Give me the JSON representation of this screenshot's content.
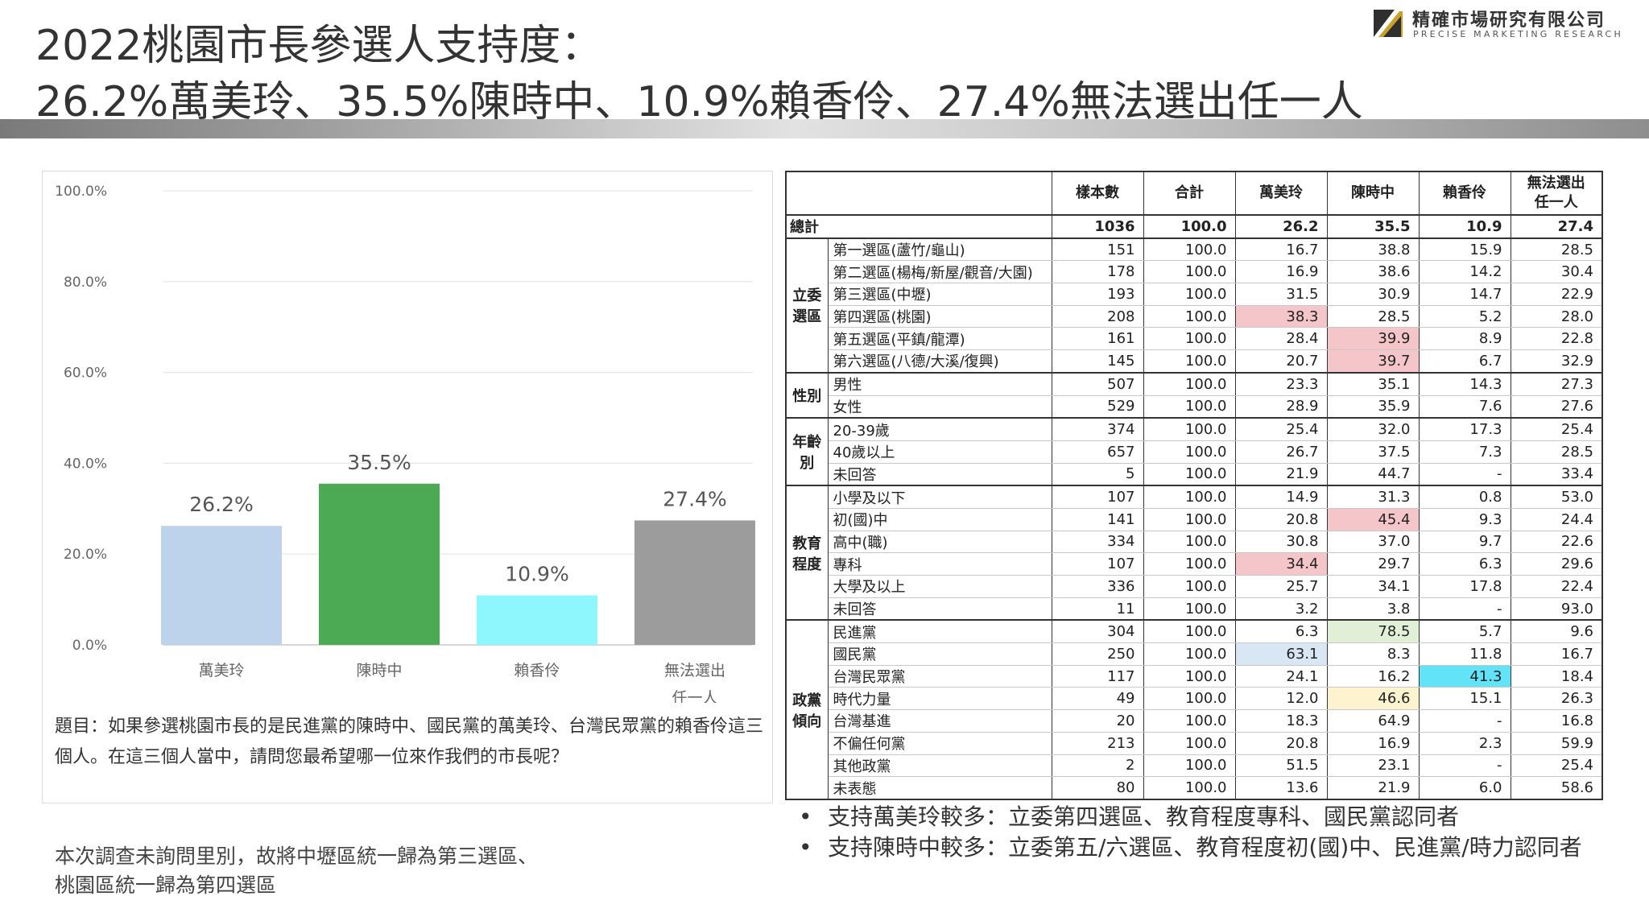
{
  "company": {
    "name_zh": "精確市場研究有限公司",
    "name_en": "PRECISE MARKETING RESEARCH",
    "logo_icon": "logo-mark-icon",
    "logo_colors": [
      "#2f2f2f",
      "#c9a227"
    ]
  },
  "title": {
    "line1": "2022桃園市長參選人支持度：",
    "line2": "26.2%萬美玲、35.5%陳時中、10.9%賴香伶、27.4%無法選出任一人"
  },
  "chart_data": {
    "type": "bar",
    "categories": [
      "萬美玲",
      "陳時中",
      "賴香伶",
      "無法選出任一人"
    ],
    "category_lines": [
      [
        "萬美玲"
      ],
      [
        "陳時中"
      ],
      [
        "賴香伶"
      ],
      [
        "無法選出",
        "任一人"
      ]
    ],
    "values": [
      26.2,
      35.5,
      10.9,
      27.4
    ],
    "data_labels": [
      "26.2%",
      "35.5%",
      "10.9%",
      "27.4%"
    ],
    "colors": [
      "#bdd3ec",
      "#4caa55",
      "#8ef6fd",
      "#9c9c9c"
    ],
    "ylim": [
      0,
      100
    ],
    "yticks": [
      0,
      20,
      40,
      60,
      80,
      100
    ],
    "ytick_labels": [
      "0.0%",
      "20.0%",
      "40.0%",
      "60.0%",
      "80.0%",
      "100.0%"
    ],
    "grid": true,
    "legend": "none"
  },
  "question": "題目：如果參選桃園市長的是民進黨的陳時中、國民黨的萬美玲、台灣民眾黨的賴香伶這三個人。在這三個人當中，請問您最希望哪一位來作我們的市長呢？",
  "note": {
    "line1": "本次調查未詢問里別，故將中壢區統一歸為第三選區、",
    "line2": "桃園區統一歸為第四選區"
  },
  "table": {
    "columns": [
      "樣本數",
      "合計",
      "萬美玲",
      "陳時中",
      "賴香伶",
      "無法選出任一人"
    ],
    "column_lines": [
      [
        "樣本數"
      ],
      [
        "合計"
      ],
      [
        "萬美玲"
      ],
      [
        "陳時中"
      ],
      [
        "賴香伶"
      ],
      [
        "無法選出",
        "任一人"
      ]
    ],
    "total": {
      "label": "總計",
      "values": [
        "1036",
        "100.0",
        "26.2",
        "35.5",
        "10.9",
        "27.4"
      ]
    },
    "groups": [
      {
        "label_lines": [
          "立委",
          "選區"
        ],
        "rows": [
          {
            "label": "第一選區(蘆竹/龜山)",
            "values": [
              "151",
              "100.0",
              "16.7",
              "38.8",
              "15.9",
              "28.5"
            ]
          },
          {
            "label": "第二選區(楊梅/新屋/觀音/大園)",
            "values": [
              "178",
              "100.0",
              "16.9",
              "38.6",
              "14.2",
              "30.4"
            ]
          },
          {
            "label": "第三選區(中壢)",
            "values": [
              "193",
              "100.0",
              "31.5",
              "30.9",
              "14.7",
              "22.9"
            ]
          },
          {
            "label": "第四選區(桃園)",
            "values": [
              "208",
              "100.0",
              "38.3",
              "28.5",
              "5.2",
              "28.0"
            ],
            "hl": {
              "2": "#f5c6c9"
            }
          },
          {
            "label": "第五選區(平鎮/龍潭)",
            "values": [
              "161",
              "100.0",
              "28.4",
              "39.9",
              "8.9",
              "22.8"
            ],
            "hl": {
              "3": "#f5c6c9"
            }
          },
          {
            "label": "第六選區(八德/大溪/復興)",
            "values": [
              "145",
              "100.0",
              "20.7",
              "39.7",
              "6.7",
              "32.9"
            ],
            "hl": {
              "3": "#f5c6c9"
            }
          }
        ]
      },
      {
        "label_lines": [
          "性別"
        ],
        "rows": [
          {
            "label": "男性",
            "values": [
              "507",
              "100.0",
              "23.3",
              "35.1",
              "14.3",
              "27.3"
            ]
          },
          {
            "label": "女性",
            "values": [
              "529",
              "100.0",
              "28.9",
              "35.9",
              "7.6",
              "27.6"
            ]
          }
        ]
      },
      {
        "label_lines": [
          "年齡",
          "別"
        ],
        "rows": [
          {
            "label": "20-39歲",
            "values": [
              "374",
              "100.0",
              "25.4",
              "32.0",
              "17.3",
              "25.4"
            ]
          },
          {
            "label": "40歲以上",
            "values": [
              "657",
              "100.0",
              "26.7",
              "37.5",
              "7.3",
              "28.5"
            ]
          },
          {
            "label": "未回答",
            "values": [
              "5",
              "100.0",
              "21.9",
              "44.7",
              "-",
              "33.4"
            ]
          }
        ]
      },
      {
        "label_lines": [
          "教育",
          "程度"
        ],
        "rows": [
          {
            "label": "小學及以下",
            "values": [
              "107",
              "100.0",
              "14.9",
              "31.3",
              "0.8",
              "53.0"
            ]
          },
          {
            "label": "初(國)中",
            "values": [
              "141",
              "100.0",
              "20.8",
              "45.4",
              "9.3",
              "24.4"
            ],
            "hl": {
              "3": "#f5c6c9"
            }
          },
          {
            "label": "高中(職)",
            "values": [
              "334",
              "100.0",
              "30.8",
              "37.0",
              "9.7",
              "22.6"
            ]
          },
          {
            "label": "專科",
            "values": [
              "107",
              "100.0",
              "34.4",
              "29.7",
              "6.3",
              "29.6"
            ],
            "hl": {
              "2": "#f5c6c9"
            }
          },
          {
            "label": "大學及以上",
            "values": [
              "336",
              "100.0",
              "25.7",
              "34.1",
              "17.8",
              "22.4"
            ]
          },
          {
            "label": "未回答",
            "values": [
              "11",
              "100.0",
              "3.2",
              "3.8",
              "-",
              "93.0"
            ]
          }
        ]
      },
      {
        "label_lines": [
          "政黨",
          "傾向"
        ],
        "rows": [
          {
            "label": "民進黨",
            "values": [
              "304",
              "100.0",
              "6.3",
              "78.5",
              "5.7",
              "9.6"
            ],
            "hl": {
              "3": "#e1efd6"
            }
          },
          {
            "label": "國民黨",
            "values": [
              "250",
              "100.0",
              "63.1",
              "8.3",
              "11.8",
              "16.7"
            ],
            "hl": {
              "2": "#d9e7f5"
            }
          },
          {
            "label": "台灣民眾黨",
            "values": [
              "117",
              "100.0",
              "24.1",
              "16.2",
              "41.3",
              "18.4"
            ],
            "hl": {
              "4": "#62e3f8"
            }
          },
          {
            "label": "時代力量",
            "values": [
              "49",
              "100.0",
              "12.0",
              "46.6",
              "15.1",
              "26.3"
            ],
            "hl": {
              "3": "#fdf3cf"
            }
          },
          {
            "label": "台灣基進",
            "values": [
              "20",
              "100.0",
              "18.3",
              "64.9",
              "-",
              "16.8"
            ]
          },
          {
            "label": "不偏任何黨",
            "values": [
              "213",
              "100.0",
              "20.8",
              "16.9",
              "2.3",
              "59.9"
            ]
          },
          {
            "label": "其他政黨",
            "values": [
              "2",
              "100.0",
              "51.5",
              "23.1",
              "-",
              "25.4"
            ]
          },
          {
            "label": "未表態",
            "values": [
              "80",
              "100.0",
              "13.6",
              "21.9",
              "6.0",
              "58.6"
            ]
          }
        ]
      }
    ]
  },
  "bullets": [
    "支持萬美玲較多：立委第四選區、教育程度專科、國民黨認同者",
    "支持陳時中較多：立委第五/六選區、教育程度初(國)中、民進黨/時力認同者"
  ],
  "bullet_glyph": "•"
}
